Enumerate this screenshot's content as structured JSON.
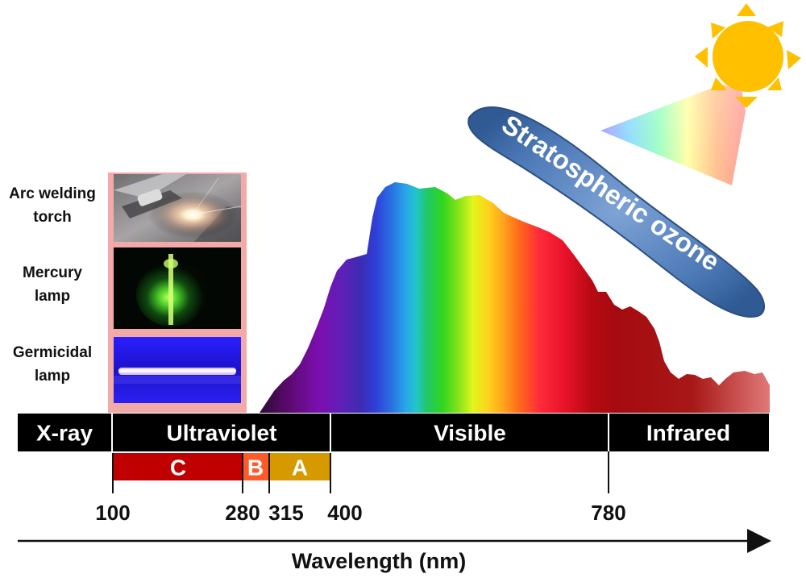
{
  "sources": [
    {
      "label": "Arc welding\ntorch",
      "icon": "arc-welding-photo"
    },
    {
      "label": "Mercury\nlamp",
      "icon": "mercury-lamp-photo"
    },
    {
      "label": "Germicidal\nlamp",
      "icon": "germicidal-lamp-photo"
    }
  ],
  "bands": {
    "xray": "X-ray",
    "ultraviolet": "Ultraviolet",
    "visible": "Visible",
    "infrared": "Infrared"
  },
  "uv_sub": {
    "c": "C",
    "b": "B",
    "a": "A"
  },
  "ticks": [
    "100",
    "280",
    "315",
    "400",
    "780"
  ],
  "axis_title": "Wavelength (nm)",
  "ozone_label": "Stratospheric ozone",
  "colors": {
    "band_bar": "#000000",
    "uvc": "#c00000",
    "uvb": "#ff5a2a",
    "uva": "#d69a00",
    "source_panel": "#f2aaa8",
    "sun": "#ffc000",
    "ozone": "#4a77b4"
  }
}
